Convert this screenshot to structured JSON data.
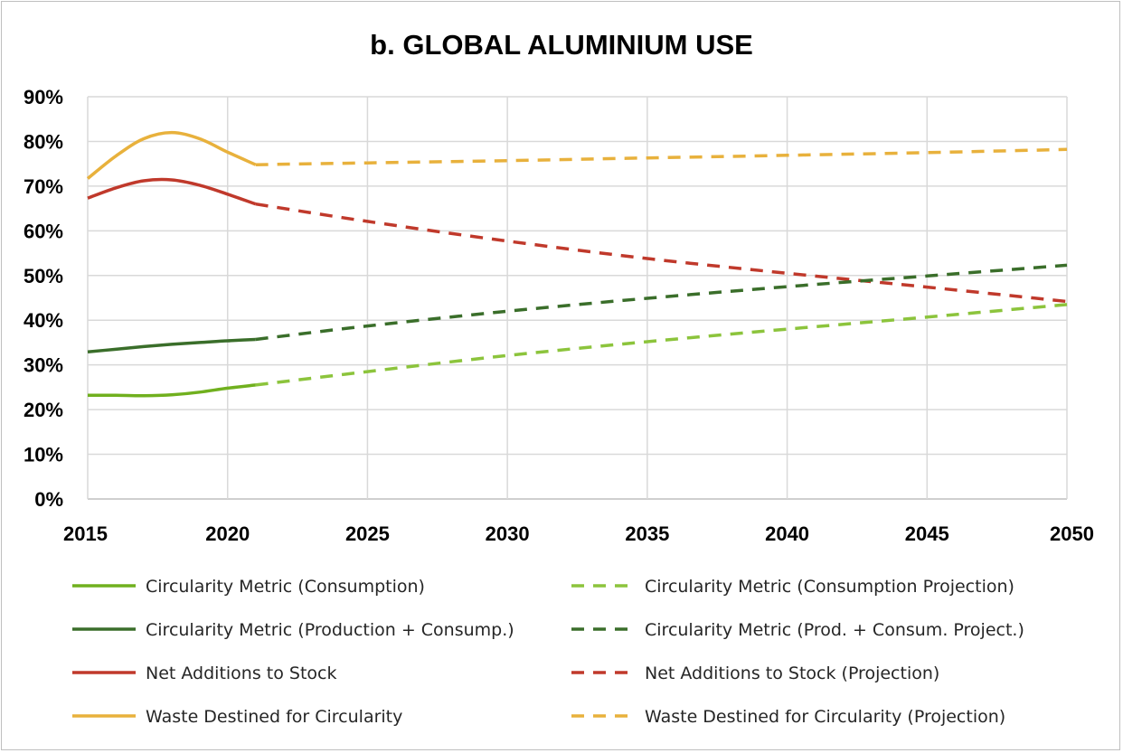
{
  "chart_data": {
    "type": "line",
    "title": "b. GLOBAL ALUMINIUM USE",
    "xlabel": "",
    "ylabel": "",
    "xlim": [
      2015,
      2050
    ],
    "ylim": [
      0,
      90
    ],
    "x_ticks": [
      "2015",
      "2020",
      "2025",
      "2030",
      "2035",
      "2040",
      "2045",
      "2050"
    ],
    "y_ticks": [
      "0%",
      "10%",
      "20%",
      "30%",
      "40%",
      "50%",
      "60%",
      "70%",
      "80%",
      "90%"
    ],
    "grid": "vertical and horizontal",
    "legend_position": "bottom",
    "series": [
      {
        "name": "Circularity Metric (Consumption)",
        "style": "solid",
        "color": "#70b01e",
        "x": [
          2015,
          2016,
          2017,
          2018,
          2019,
          2020,
          2021
        ],
        "y": [
          23.2,
          23.2,
          23.1,
          23.3,
          23.9,
          24.8,
          25.5
        ]
      },
      {
        "name": "Circularity Metric (Consumption Projection)",
        "style": "dashed",
        "color": "#8cc43c",
        "x": [
          2021,
          2025,
          2030,
          2035,
          2040,
          2045,
          2050
        ],
        "y": [
          25.5,
          28.5,
          32.1,
          35.2,
          38.0,
          40.7,
          43.5
        ]
      },
      {
        "name": "Circularity Metric (Production + Consump.)",
        "style": "solid",
        "color": "#3a6e2a",
        "x": [
          2015,
          2016,
          2017,
          2018,
          2019,
          2020,
          2021
        ],
        "y": [
          32.9,
          33.5,
          34.1,
          34.6,
          35.0,
          35.4,
          35.7
        ]
      },
      {
        "name": "Circularity Metric (Prod. + Consum. Project.)",
        "style": "dashed",
        "color": "#3a6e2a",
        "x": [
          2021,
          2025,
          2030,
          2035,
          2040,
          2045,
          2050
        ],
        "y": [
          35.7,
          38.7,
          42.0,
          44.9,
          47.5,
          49.9,
          52.3
        ]
      },
      {
        "name": "Net Additions to Stock",
        "style": "solid",
        "color": "#c0392b",
        "x": [
          2015,
          2016,
          2017,
          2018,
          2019,
          2020,
          2021
        ],
        "y": [
          67.3,
          69.6,
          71.2,
          71.4,
          70.2,
          68.2,
          66.0
        ]
      },
      {
        "name": "Net Additions to Stock (Projection)",
        "style": "dashed",
        "color": "#c0392b",
        "x": [
          2021,
          2025,
          2030,
          2035,
          2040,
          2045,
          2050
        ],
        "y": [
          66.0,
          62.1,
          57.7,
          53.8,
          50.5,
          47.4,
          44.2
        ]
      },
      {
        "name": "Waste Destined for Circularity",
        "style": "solid",
        "color": "#e8b13c",
        "x": [
          2015,
          2016,
          2017,
          2018,
          2019,
          2020,
          2021
        ],
        "y": [
          71.7,
          76.7,
          80.6,
          82.0,
          80.6,
          77.6,
          74.8
        ]
      },
      {
        "name": "Waste Destined for Circularity (Projection)",
        "style": "dashed",
        "color": "#e8b13c",
        "x": [
          2021,
          2025,
          2030,
          2035,
          2040,
          2045,
          2050
        ],
        "y": [
          74.8,
          75.2,
          75.7,
          76.3,
          76.9,
          77.5,
          78.2
        ]
      }
    ]
  }
}
